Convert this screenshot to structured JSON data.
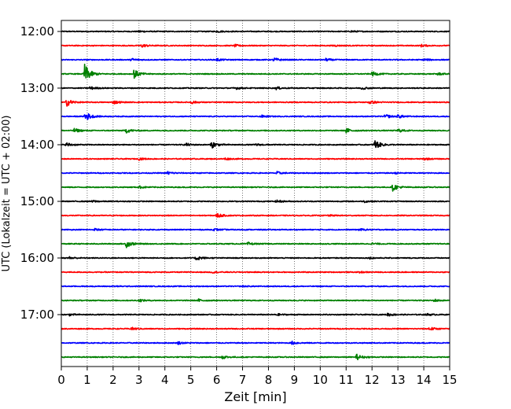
{
  "chart_data": {
    "type": "line",
    "title": "",
    "xlabel": "Zeit  [min]",
    "ylabel": "UTC (Lokalzeit = UTC + 02:00)",
    "xlim": [
      0,
      15
    ],
    "x_ticks": [
      0,
      1,
      2,
      3,
      4,
      5,
      6,
      7,
      8,
      9,
      10,
      11,
      12,
      13,
      14,
      15
    ],
    "x_grid": true,
    "y_tick_labels": [
      "12:00",
      "13:00",
      "14:00",
      "15:00",
      "16:00",
      "17:00"
    ],
    "traces_per_hour": 4,
    "trace_minutes": 15,
    "trace_colors": [
      "#000000",
      "#ff0000",
      "#0000ff",
      "#008000"
    ],
    "traces": [
      {
        "start": "12:00",
        "events": [
          [
            3.0,
            0.3
          ],
          [
            6.0,
            0.3
          ],
          [
            11.2,
            0.3
          ]
        ]
      },
      {
        "start": "12:15",
        "events": [
          [
            3.1,
            0.7
          ],
          [
            6.7,
            0.4
          ],
          [
            10.5,
            0.3
          ],
          [
            13.9,
            0.4
          ]
        ]
      },
      {
        "start": "12:30",
        "events": [
          [
            2.7,
            0.6
          ],
          [
            6.0,
            0.5
          ],
          [
            8.2,
            0.8
          ],
          [
            10.2,
            0.5
          ],
          [
            14.0,
            0.4
          ]
        ]
      },
      {
        "start": "12:45",
        "events": [
          [
            0.9,
            4.0
          ],
          [
            2.8,
            1.8
          ],
          [
            12.0,
            0.9
          ],
          [
            14.5,
            0.6
          ]
        ]
      },
      {
        "start": "13:00",
        "events": [
          [
            1.1,
            0.6
          ],
          [
            6.7,
            0.5
          ],
          [
            8.3,
            0.5
          ],
          [
            11.6,
            0.5
          ]
        ]
      },
      {
        "start": "13:15",
        "events": [
          [
            0.2,
            1.6
          ],
          [
            2.0,
            0.7
          ],
          [
            5.0,
            0.6
          ],
          [
            11.9,
            0.7
          ]
        ]
      },
      {
        "start": "13:30",
        "events": [
          [
            0.9,
            2.2
          ],
          [
            7.7,
            0.5
          ],
          [
            12.5,
            0.8
          ],
          [
            13.0,
            0.7
          ]
        ]
      },
      {
        "start": "13:45",
        "events": [
          [
            0.5,
            0.8
          ],
          [
            2.5,
            0.9
          ],
          [
            11.0,
            0.9
          ],
          [
            13.0,
            0.7
          ]
        ]
      },
      {
        "start": "14:00",
        "events": [
          [
            0.2,
            0.8
          ],
          [
            4.8,
            0.6
          ],
          [
            5.8,
            1.4
          ],
          [
            12.1,
            2.0
          ],
          [
            7.5,
            0.4
          ]
        ]
      },
      {
        "start": "14:15",
        "events": [
          [
            3.0,
            0.4
          ],
          [
            6.3,
            0.4
          ],
          [
            14.0,
            0.4
          ]
        ]
      },
      {
        "start": "14:30",
        "events": [
          [
            4.1,
            0.6
          ],
          [
            8.3,
            0.6
          ],
          [
            12.9,
            0.3
          ]
        ]
      },
      {
        "start": "14:45",
        "events": [
          [
            3.0,
            0.5
          ],
          [
            12.8,
            1.4
          ]
        ]
      },
      {
        "start": "15:00",
        "events": [
          [
            1.2,
            0.4
          ],
          [
            8.3,
            0.6
          ],
          [
            11.7,
            0.4
          ]
        ]
      },
      {
        "start": "15:15",
        "events": [
          [
            6.0,
            0.9
          ],
          [
            10.3,
            0.3
          ]
        ]
      },
      {
        "start": "15:30",
        "events": [
          [
            1.3,
            0.4
          ],
          [
            5.9,
            0.4
          ],
          [
            11.5,
            0.4
          ]
        ]
      },
      {
        "start": "15:45",
        "events": [
          [
            2.5,
            1.5
          ],
          [
            7.2,
            0.6
          ],
          [
            12.0,
            0.4
          ]
        ]
      },
      {
        "start": "16:00",
        "events": [
          [
            0.3,
            0.5
          ],
          [
            5.2,
            1.0
          ],
          [
            11.9,
            0.3
          ]
        ]
      },
      {
        "start": "16:15",
        "events": [
          [
            5.8,
            0.3
          ],
          [
            11.5,
            0.3
          ]
        ]
      },
      {
        "start": "16:30",
        "events": [
          [
            2.0,
            0.2
          ],
          [
            7.0,
            0.2
          ]
        ]
      },
      {
        "start": "16:45",
        "events": [
          [
            3.0,
            0.5
          ],
          [
            5.3,
            0.5
          ],
          [
            14.4,
            0.5
          ]
        ]
      },
      {
        "start": "17:00",
        "events": [
          [
            0.3,
            0.4
          ],
          [
            8.3,
            0.4
          ],
          [
            12.6,
            0.6
          ],
          [
            14.1,
            0.4
          ]
        ]
      },
      {
        "start": "17:15",
        "events": [
          [
            2.7,
            0.5
          ],
          [
            14.2,
            0.7
          ]
        ]
      },
      {
        "start": "17:30",
        "events": [
          [
            4.5,
            0.5
          ],
          [
            8.9,
            0.6
          ]
        ]
      },
      {
        "start": "17:45",
        "events": [
          [
            6.2,
            0.7
          ],
          [
            11.4,
            1.1
          ]
        ]
      }
    ]
  }
}
